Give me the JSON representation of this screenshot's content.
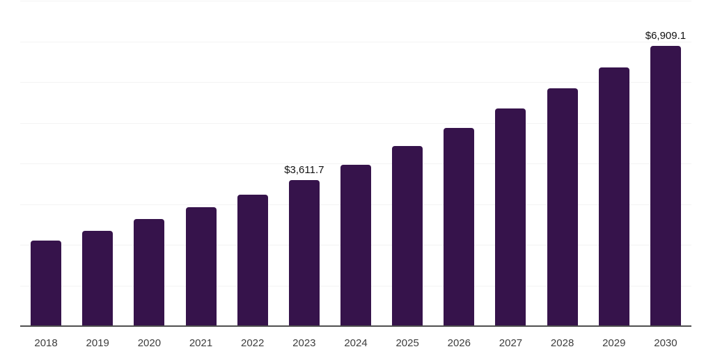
{
  "chart_data": {
    "type": "bar",
    "title": "",
    "xlabel": "",
    "ylabel": "",
    "categories": [
      "2018",
      "2019",
      "2020",
      "2021",
      "2022",
      "2023",
      "2024",
      "2025",
      "2026",
      "2027",
      "2028",
      "2029",
      "2030"
    ],
    "values": [
      2120,
      2365,
      2650,
      2940,
      3250,
      3611.7,
      3990,
      4450,
      4890,
      5360,
      5855,
      6375,
      6909.1
    ],
    "bar_labels": [
      "",
      "",
      "",
      "",
      "",
      "$3,611.7",
      "",
      "",
      "",
      "",
      "",
      "",
      "$6,909.1"
    ],
    "ylim": [
      0,
      8000
    ],
    "gridline_step": 1000,
    "grid": "horizontal",
    "legend": "none",
    "colors": {
      "bar": "#36134b",
      "gridline": "#f3f3f3",
      "axis_line": "#4f4f4f",
      "tick_label": "#3d3d3d",
      "value_label": "#111111",
      "background": "#ffffff"
    }
  }
}
